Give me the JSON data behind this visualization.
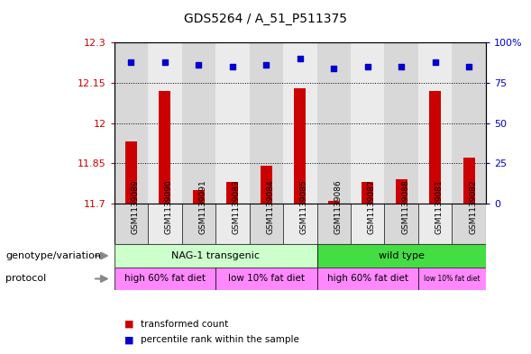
{
  "title": "GDS5264 / A_51_P511375",
  "samples": [
    "GSM1139089",
    "GSM1139090",
    "GSM1139091",
    "GSM1139083",
    "GSM1139084",
    "GSM1139085",
    "GSM1139086",
    "GSM1139087",
    "GSM1139088",
    "GSM1139081",
    "GSM1139082"
  ],
  "red_values": [
    11.93,
    12.12,
    11.75,
    11.78,
    11.84,
    12.13,
    11.71,
    11.78,
    11.79,
    12.12,
    11.87
  ],
  "blue_values": [
    88,
    88,
    86,
    85,
    86,
    90,
    84,
    85,
    85,
    88,
    85
  ],
  "ylim_left": [
    11.7,
    12.3
  ],
  "ylim_right": [
    0,
    100
  ],
  "yticks_left": [
    11.7,
    11.85,
    12.0,
    12.15,
    12.3
  ],
  "yticks_right": [
    0,
    25,
    50,
    75,
    100
  ],
  "ytick_labels_left": [
    "11.7",
    "11.85",
    "12",
    "12.15",
    "12.3"
  ],
  "ytick_labels_right": [
    "0",
    "25",
    "50",
    "75",
    "100%"
  ],
  "genotype_groups": [
    {
      "label": "NAG-1 transgenic",
      "start": 0,
      "end": 6,
      "color": "#CCFFCC"
    },
    {
      "label": "wild type",
      "start": 6,
      "end": 11,
      "color": "#44DD44"
    }
  ],
  "protocol_groups": [
    {
      "label": "high 60% fat diet",
      "start": 0,
      "end": 3,
      "color": "#FF88FF"
    },
    {
      "label": "low 10% fat diet",
      "start": 3,
      "end": 6,
      "color": "#FF88FF"
    },
    {
      "label": "high 60% fat diet",
      "start": 6,
      "end": 9,
      "color": "#FF88FF"
    },
    {
      "label": "low 10% fat diet",
      "start": 9,
      "end": 11,
      "color": "#FF88FF"
    }
  ],
  "bar_color": "#CC0000",
  "dot_color": "#0000CC",
  "legend_red": "transformed count",
  "legend_blue": "percentile rank within the sample",
  "label_genotype": "genotype/variation",
  "label_protocol": "protocol",
  "col_bg_even": "#D8D8D8",
  "col_bg_odd": "#EBEBEB"
}
